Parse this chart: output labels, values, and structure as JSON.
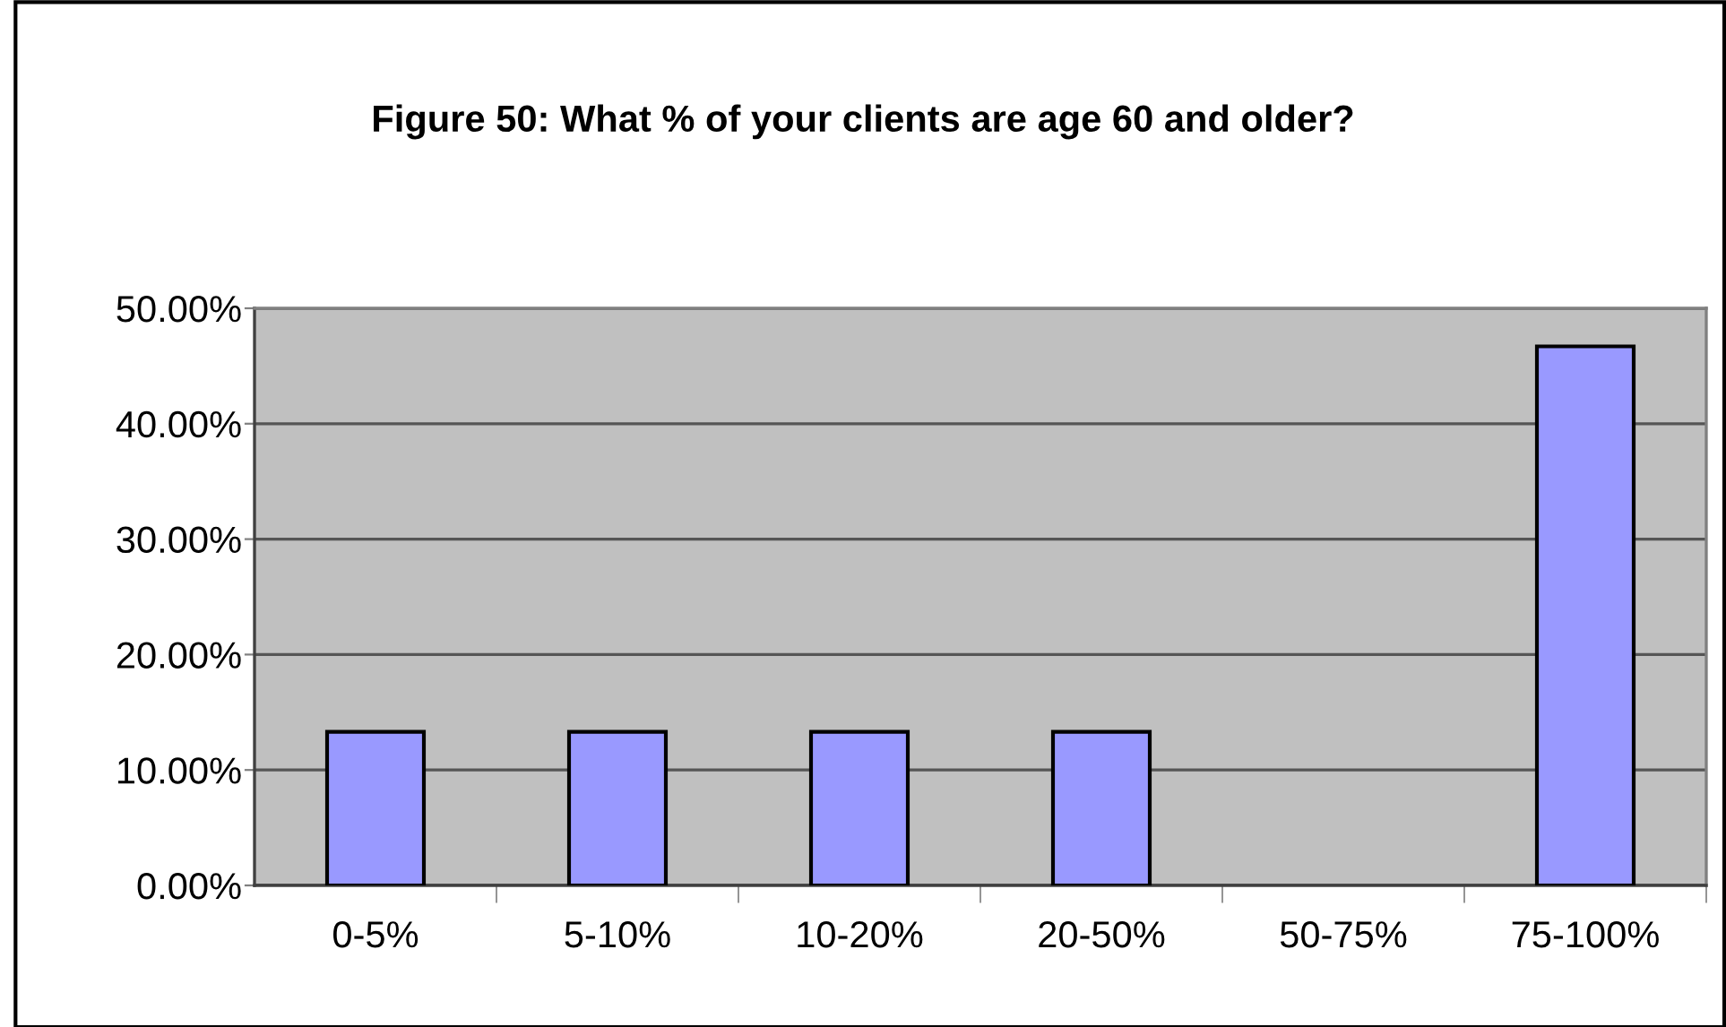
{
  "chart_data": {
    "type": "bar",
    "title": "Figure 50: What % of your clients are age 60 and older?",
    "categories": [
      "0-5%",
      "5-10%",
      "10-20%",
      "20-50%",
      "50-75%",
      "75-100%"
    ],
    "values": [
      13.3,
      13.3,
      13.3,
      13.3,
      0,
      46.7
    ],
    "color": "#9999ff",
    "ylim": [
      0,
      50
    ],
    "yticks": [
      {
        "value": 0,
        "label": "0.00%"
      },
      {
        "value": 10,
        "label": "10.00%"
      },
      {
        "value": 20,
        "label": "20.00%"
      },
      {
        "value": 30,
        "label": "30.00%"
      },
      {
        "value": 40,
        "label": "40.00%"
      },
      {
        "value": 50,
        "label": "50.00%"
      }
    ],
    "grid": "y",
    "legend": false
  }
}
